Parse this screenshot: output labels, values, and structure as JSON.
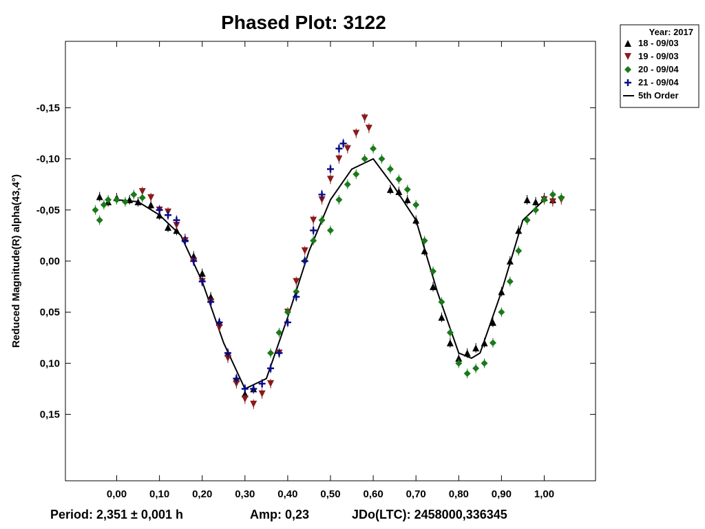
{
  "chart_data": {
    "type": "scatter",
    "title": "Phased Plot: 3122",
    "xlabel": "",
    "ylabel": "Reduced Magnitude(R) alpha(43,4°)",
    "xlim": [
      -0.12,
      1.12
    ],
    "ylim": [
      0.215,
      -0.215
    ],
    "y_inverted": true,
    "grid": false,
    "legend_placement": "top-right outside",
    "x_ticks": [
      0.0,
      0.1,
      0.2,
      0.3,
      0.4,
      0.5,
      0.6,
      0.7,
      0.8,
      0.9,
      1.0
    ],
    "x_tick_labels": [
      "0,00",
      "0,10",
      "0,20",
      "0,30",
      "0,40",
      "0,50",
      "0,60",
      "0,70",
      "0,80",
      "0,90",
      "1,00"
    ],
    "y_ticks": [
      -0.15,
      -0.1,
      -0.05,
      0.0,
      0.05,
      0.1,
      0.15
    ],
    "y_tick_labels": [
      "-0,15",
      "-0,10",
      "-0,05",
      "0,00",
      "0,05",
      "0,10",
      "0,15"
    ],
    "legend_title": "Year: 2017",
    "series": [
      {
        "name": "18 - 09/03",
        "marker": "triangle-up",
        "color": "#000000",
        "points": [
          [
            -0.04,
            -0.063
          ],
          [
            -0.02,
            -0.058
          ],
          [
            0.0,
            -0.062
          ],
          [
            0.03,
            -0.06
          ],
          [
            0.05,
            -0.058
          ],
          [
            0.08,
            -0.055
          ],
          [
            0.1,
            -0.045
          ],
          [
            0.12,
            -0.033
          ],
          [
            0.14,
            -0.03
          ],
          [
            0.16,
            -0.022
          ],
          [
            0.18,
            -0.005
          ],
          [
            0.2,
            0.012
          ],
          [
            0.22,
            0.035
          ],
          [
            0.24,
            0.06
          ],
          [
            0.26,
            0.09
          ],
          [
            0.28,
            0.115
          ],
          [
            0.3,
            0.13
          ],
          [
            0.32,
            0.125
          ],
          [
            0.64,
            -0.07
          ],
          [
            0.66,
            -0.068
          ],
          [
            0.68,
            -0.06
          ],
          [
            0.7,
            -0.04
          ],
          [
            0.72,
            -0.01
          ],
          [
            0.74,
            0.025
          ],
          [
            0.76,
            0.055
          ],
          [
            0.78,
            0.08
          ],
          [
            0.8,
            0.095
          ],
          [
            0.82,
            0.09
          ],
          [
            0.84,
            0.085
          ],
          [
            0.86,
            0.08
          ],
          [
            0.88,
            0.06
          ],
          [
            0.9,
            0.03
          ],
          [
            0.92,
            0.0
          ],
          [
            0.94,
            -0.03
          ],
          [
            0.96,
            -0.06
          ],
          [
            0.98,
            -0.058
          ],
          [
            1.0,
            -0.062
          ],
          [
            1.02,
            -0.06
          ]
        ]
      },
      {
        "name": "19 - 09/03",
        "marker": "triangle-down",
        "color": "#8b1a1a",
        "points": [
          [
            0.06,
            -0.068
          ],
          [
            0.08,
            -0.062
          ],
          [
            0.1,
            -0.05
          ],
          [
            0.12,
            -0.048
          ],
          [
            0.14,
            -0.035
          ],
          [
            0.16,
            -0.02
          ],
          [
            0.18,
            0.0
          ],
          [
            0.2,
            0.02
          ],
          [
            0.22,
            0.04
          ],
          [
            0.24,
            0.065
          ],
          [
            0.26,
            0.095
          ],
          [
            0.28,
            0.12
          ],
          [
            0.3,
            0.135
          ],
          [
            0.32,
            0.14
          ],
          [
            0.34,
            0.13
          ],
          [
            0.36,
            0.12
          ],
          [
            0.38,
            0.09
          ],
          [
            0.4,
            0.05
          ],
          [
            0.42,
            0.02
          ],
          [
            0.44,
            -0.01
          ],
          [
            0.46,
            -0.04
          ],
          [
            0.48,
            -0.06
          ],
          [
            0.5,
            -0.08
          ],
          [
            0.52,
            -0.1
          ],
          [
            0.54,
            -0.11
          ],
          [
            0.56,
            -0.125
          ],
          [
            0.58,
            -0.14
          ],
          [
            0.59,
            -0.13
          ],
          [
            1.0,
            -0.06
          ],
          [
            1.02,
            -0.058
          ],
          [
            1.04,
            -0.06
          ]
        ]
      },
      {
        "name": "20 - 09/04",
        "marker": "diamond",
        "color": "#1a7a1a",
        "points": [
          [
            -0.05,
            -0.05
          ],
          [
            -0.04,
            -0.04
          ],
          [
            -0.03,
            -0.055
          ],
          [
            -0.02,
            -0.06
          ],
          [
            0.0,
            -0.06
          ],
          [
            0.02,
            -0.058
          ],
          [
            0.04,
            -0.065
          ],
          [
            0.06,
            -0.062
          ],
          [
            0.36,
            0.09
          ],
          [
            0.38,
            0.07
          ],
          [
            0.4,
            0.05
          ],
          [
            0.42,
            0.03
          ],
          [
            0.44,
            0.0
          ],
          [
            0.46,
            -0.02
          ],
          [
            0.48,
            -0.04
          ],
          [
            0.5,
            -0.03
          ],
          [
            0.52,
            -0.06
          ],
          [
            0.54,
            -0.075
          ],
          [
            0.56,
            -0.085
          ],
          [
            0.58,
            -0.1
          ],
          [
            0.6,
            -0.11
          ],
          [
            0.62,
            -0.1
          ],
          [
            0.64,
            -0.09
          ],
          [
            0.66,
            -0.08
          ],
          [
            0.68,
            -0.07
          ],
          [
            0.7,
            -0.055
          ],
          [
            0.72,
            -0.02
          ],
          [
            0.74,
            0.01
          ],
          [
            0.76,
            0.04
          ],
          [
            0.78,
            0.07
          ],
          [
            0.8,
            0.1
          ],
          [
            0.82,
            0.11
          ],
          [
            0.84,
            0.105
          ],
          [
            0.86,
            0.1
          ],
          [
            0.88,
            0.08
          ],
          [
            0.9,
            0.05
          ],
          [
            0.92,
            0.02
          ],
          [
            0.94,
            -0.01
          ],
          [
            0.96,
            -0.04
          ],
          [
            0.98,
            -0.05
          ],
          [
            1.0,
            -0.06
          ],
          [
            1.02,
            -0.065
          ],
          [
            1.04,
            -0.062
          ]
        ]
      },
      {
        "name": "21 - 09/04",
        "marker": "plus",
        "color": "#0a0a8a",
        "points": [
          [
            0.1,
            -0.05
          ],
          [
            0.12,
            -0.045
          ],
          [
            0.14,
            -0.04
          ],
          [
            0.16,
            -0.02
          ],
          [
            0.18,
            0.0
          ],
          [
            0.2,
            0.02
          ],
          [
            0.22,
            0.04
          ],
          [
            0.24,
            0.06
          ],
          [
            0.26,
            0.09
          ],
          [
            0.28,
            0.115
          ],
          [
            0.3,
            0.125
          ],
          [
            0.32,
            0.125
          ],
          [
            0.34,
            0.12
          ],
          [
            0.36,
            0.105
          ],
          [
            0.38,
            0.09
          ],
          [
            0.4,
            0.06
          ],
          [
            0.42,
            0.035
          ],
          [
            0.44,
            0.0
          ],
          [
            0.46,
            -0.03
          ],
          [
            0.48,
            -0.065
          ],
          [
            0.5,
            -0.09
          ],
          [
            0.52,
            -0.11
          ],
          [
            0.53,
            -0.115
          ]
        ]
      }
    ],
    "fit": {
      "name": "5th Order",
      "color": "#000000",
      "points": [
        [
          0.0,
          -0.06
        ],
        [
          0.05,
          -0.058
        ],
        [
          0.1,
          -0.045
        ],
        [
          0.15,
          -0.025
        ],
        [
          0.2,
          0.02
        ],
        [
          0.25,
          0.08
        ],
        [
          0.3,
          0.125
        ],
        [
          0.35,
          0.115
        ],
        [
          0.4,
          0.055
        ],
        [
          0.45,
          -0.01
        ],
        [
          0.5,
          -0.06
        ],
        [
          0.55,
          -0.09
        ],
        [
          0.6,
          -0.1
        ],
        [
          0.65,
          -0.072
        ],
        [
          0.7,
          -0.04
        ],
        [
          0.75,
          0.03
        ],
        [
          0.8,
          0.09
        ],
        [
          0.83,
          0.095
        ],
        [
          0.85,
          0.09
        ],
        [
          0.9,
          0.03
        ],
        [
          0.95,
          -0.04
        ],
        [
          1.0,
          -0.06
        ]
      ]
    }
  },
  "footer": {
    "period": "Period: 2,351 ± 0,001 h",
    "amp": "Amp: 0,23",
    "jdo": "JDo(LTC): 2458000,336345"
  }
}
